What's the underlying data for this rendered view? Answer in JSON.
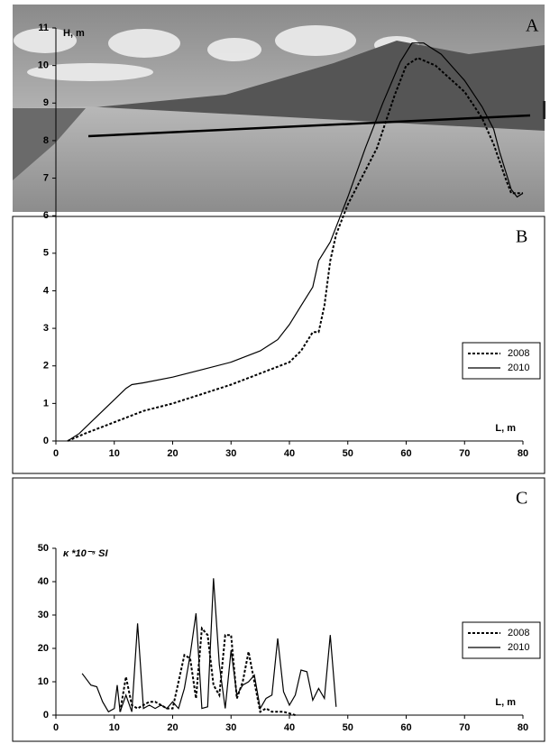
{
  "photo_panel": {
    "label": "A"
  },
  "chart_data": [
    {
      "type": "line",
      "panel_label": "B",
      "ylabel": "H, m",
      "xlabel": "L, m",
      "xlim": [
        0,
        80
      ],
      "xticks": [
        0,
        10,
        20,
        30,
        40,
        50,
        60,
        70,
        80
      ],
      "ylim": [
        0,
        11
      ],
      "yticks": [
        0,
        1,
        2,
        3,
        4,
        5,
        6,
        7,
        8,
        9,
        10,
        11
      ],
      "legend": "right",
      "color": "#000000",
      "series": [
        {
          "name": "2008",
          "line_style": "dotted",
          "x": [
            2,
            5,
            10,
            15,
            20,
            25,
            30,
            35,
            40,
            42,
            44,
            45,
            46,
            47,
            48,
            50,
            53,
            55,
            58,
            60,
            62,
            65,
            70,
            73,
            75,
            77,
            78,
            80
          ],
          "values": [
            0,
            0.2,
            0.5,
            0.8,
            1.0,
            1.25,
            1.5,
            1.8,
            2.1,
            2.4,
            2.9,
            2.9,
            3.6,
            4.8,
            5.5,
            6.3,
            7.2,
            7.8,
            9.2,
            10.0,
            10.2,
            10.0,
            9.3,
            8.6,
            7.9,
            7.0,
            6.6,
            6.6
          ]
        },
        {
          "name": "2010",
          "line_style": "solid",
          "x": [
            2,
            4,
            6,
            8,
            10,
            12,
            13,
            15,
            20,
            25,
            30,
            35,
            38,
            40,
            42,
            44,
            45,
            47,
            50,
            53,
            56,
            59,
            61,
            63,
            66,
            70,
            73,
            75,
            76,
            78,
            79,
            80
          ],
          "values": [
            0,
            0.2,
            0.5,
            0.8,
            1.1,
            1.4,
            1.5,
            1.55,
            1.7,
            1.9,
            2.1,
            2.4,
            2.7,
            3.1,
            3.6,
            4.1,
            4.8,
            5.3,
            6.5,
            7.8,
            9.0,
            10.1,
            10.6,
            10.6,
            10.3,
            9.6,
            8.9,
            8.3,
            7.7,
            6.7,
            6.5,
            6.6
          ]
        }
      ]
    },
    {
      "type": "line",
      "panel_label": "C",
      "ylabel": "κ *10⁻⁵ SI",
      "xlabel": "L, m",
      "xlim": [
        0,
        80
      ],
      "xticks": [
        0,
        10,
        20,
        30,
        40,
        50,
        60,
        70,
        80
      ],
      "ylim": [
        0,
        50
      ],
      "yticks": [
        0,
        10,
        20,
        30,
        40,
        50
      ],
      "legend": "right",
      "color": "#000000",
      "series": [
        {
          "name": "2008",
          "line_style": "dotted",
          "x": [
            11,
            12,
            13,
            14,
            15,
            16,
            17,
            18,
            19,
            20,
            21,
            22,
            23,
            24,
            25,
            26,
            27,
            28,
            29,
            30,
            31,
            32,
            33,
            34,
            35,
            36,
            37,
            38,
            39,
            40,
            41
          ],
          "values": [
            1,
            11.5,
            3,
            2,
            3,
            4,
            4,
            3,
            2,
            2,
            10,
            18,
            17,
            5,
            26,
            24,
            9,
            6,
            24,
            24,
            5,
            10,
            19,
            10,
            1,
            2,
            1,
            1,
            1,
            0.5,
            0
          ]
        },
        {
          "name": "2010",
          "line_style": "solid",
          "x": [
            4.5,
            6,
            7,
            8,
            9,
            10,
            10.5,
            11,
            12,
            13,
            14,
            15,
            16,
            17,
            18,
            19,
            20,
            21,
            22,
            23,
            24,
            25,
            26,
            27,
            28,
            29,
            30,
            31,
            32,
            33,
            34,
            35,
            36,
            37,
            38,
            39,
            40,
            41,
            42,
            43,
            44,
            45,
            46,
            47,
            48
          ],
          "values": [
            12.5,
            9,
            8.5,
            4,
            1,
            2,
            9,
            1,
            6,
            1,
            27.5,
            2,
            3,
            2,
            3,
            2,
            4,
            2,
            8,
            18,
            30.5,
            2,
            2.5,
            41,
            15,
            2,
            19.5,
            6,
            9,
            10,
            12,
            2,
            5,
            6,
            23,
            7,
            3,
            6,
            13.5,
            13,
            4.5,
            8,
            5,
            24,
            2.5
          ]
        }
      ]
    }
  ]
}
